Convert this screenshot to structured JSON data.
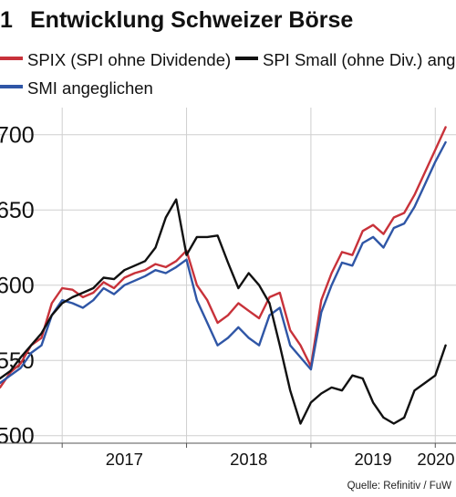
{
  "chart_number": "1",
  "title": "Entwicklung Schweizer Börse",
  "source": "Quelle: Refinitiv / FuW",
  "colors": {
    "spix": "#c8323a",
    "spi_small": "#111111",
    "smi": "#2f56a6",
    "grid": "#cfcfcf",
    "axis": "#555555"
  },
  "chart_data": {
    "type": "line",
    "title": "Entwicklung Schweizer Börse",
    "xlabel": "",
    "ylabel": "",
    "x_ticks": [
      "2017",
      "2018",
      "2019",
      "2020"
    ],
    "x_range": [
      "2016-07",
      "2020-03"
    ],
    "y_ticks": [
      500,
      550,
      600,
      650,
      700
    ],
    "y_tick_labels": [
      "500",
      "550",
      "600",
      "650",
      "700"
    ],
    "ylim": [
      495,
      718
    ],
    "grid": "vertical year lines and horizontal value lines",
    "legend_position": "top",
    "series": [
      {
        "name": "SPIX (SPI ohne Dividende)",
        "color": "#c8323a",
        "points": [
          [
            "2016-07",
            532
          ],
          [
            "2016-08",
            542
          ],
          [
            "2016-09",
            548
          ],
          [
            "2016-10",
            560
          ],
          [
            "2016-11",
            565
          ],
          [
            "2016-12",
            588
          ],
          [
            "2017-01",
            598
          ],
          [
            "2017-02",
            597
          ],
          [
            "2017-03",
            592
          ],
          [
            "2017-04",
            595
          ],
          [
            "2017-05",
            602
          ],
          [
            "2017-06",
            598
          ],
          [
            "2017-07",
            605
          ],
          [
            "2017-08",
            608
          ],
          [
            "2017-09",
            610
          ],
          [
            "2017-10",
            614
          ],
          [
            "2017-11",
            612
          ],
          [
            "2017-12",
            616
          ],
          [
            "2018-01",
            623
          ],
          [
            "2018-02",
            600
          ],
          [
            "2018-03",
            590
          ],
          [
            "2018-04",
            575
          ],
          [
            "2018-05",
            580
          ],
          [
            "2018-06",
            588
          ],
          [
            "2018-07",
            583
          ],
          [
            "2018-08",
            578
          ],
          [
            "2018-09",
            592
          ],
          [
            "2018-10",
            595
          ],
          [
            "2018-11",
            570
          ],
          [
            "2018-12",
            560
          ],
          [
            "2019-01",
            546
          ],
          [
            "2019-02",
            590
          ],
          [
            "2019-03",
            608
          ],
          [
            "2019-04",
            622
          ],
          [
            "2019-05",
            620
          ],
          [
            "2019-06",
            636
          ],
          [
            "2019-07",
            640
          ],
          [
            "2019-08",
            634
          ],
          [
            "2019-09",
            645
          ],
          [
            "2019-10",
            648
          ],
          [
            "2019-11",
            660
          ],
          [
            "2019-12",
            675
          ],
          [
            "2020-01",
            690
          ],
          [
            "2020-02",
            705
          ]
        ]
      },
      {
        "name": "SPI Small (ohne Div.) ang.",
        "color": "#111111",
        "points": [
          [
            "2016-07",
            538
          ],
          [
            "2016-08",
            543
          ],
          [
            "2016-09",
            552
          ],
          [
            "2016-10",
            560
          ],
          [
            "2016-11",
            568
          ],
          [
            "2016-12",
            580
          ],
          [
            "2017-01",
            588
          ],
          [
            "2017-02",
            592
          ],
          [
            "2017-03",
            595
          ],
          [
            "2017-04",
            598
          ],
          [
            "2017-05",
            605
          ],
          [
            "2017-06",
            604
          ],
          [
            "2017-07",
            610
          ],
          [
            "2017-08",
            613
          ],
          [
            "2017-09",
            616
          ],
          [
            "2017-10",
            625
          ],
          [
            "2017-11",
            645
          ],
          [
            "2017-12",
            657
          ],
          [
            "2018-01",
            620
          ],
          [
            "2018-02",
            632
          ],
          [
            "2018-03",
            632
          ],
          [
            "2018-04",
            633
          ],
          [
            "2018-05",
            615
          ],
          [
            "2018-06",
            598
          ],
          [
            "2018-07",
            608
          ],
          [
            "2018-08",
            600
          ],
          [
            "2018-09",
            588
          ],
          [
            "2018-10",
            560
          ],
          [
            "2018-11",
            530
          ],
          [
            "2018-12",
            508
          ],
          [
            "2019-01",
            522
          ],
          [
            "2019-02",
            528
          ],
          [
            "2019-03",
            532
          ],
          [
            "2019-04",
            530
          ],
          [
            "2019-05",
            540
          ],
          [
            "2019-06",
            538
          ],
          [
            "2019-07",
            522
          ],
          [
            "2019-08",
            512
          ],
          [
            "2019-09",
            508
          ],
          [
            "2019-10",
            512
          ],
          [
            "2019-11",
            530
          ],
          [
            "2019-12",
            535
          ],
          [
            "2020-01",
            540
          ],
          [
            "2020-02",
            560
          ]
        ]
      },
      {
        "name": "SMI angeglichen",
        "color": "#2f56a6",
        "points": [
          [
            "2016-07",
            535
          ],
          [
            "2016-08",
            540
          ],
          [
            "2016-09",
            545
          ],
          [
            "2016-10",
            555
          ],
          [
            "2016-11",
            560
          ],
          [
            "2016-12",
            580
          ],
          [
            "2017-01",
            590
          ],
          [
            "2017-02",
            588
          ],
          [
            "2017-03",
            585
          ],
          [
            "2017-04",
            590
          ],
          [
            "2017-05",
            598
          ],
          [
            "2017-06",
            594
          ],
          [
            "2017-07",
            600
          ],
          [
            "2017-08",
            603
          ],
          [
            "2017-09",
            606
          ],
          [
            "2017-10",
            610
          ],
          [
            "2017-11",
            608
          ],
          [
            "2017-12",
            612
          ],
          [
            "2018-01",
            617
          ],
          [
            "2018-02",
            590
          ],
          [
            "2018-03",
            575
          ],
          [
            "2018-04",
            560
          ],
          [
            "2018-05",
            565
          ],
          [
            "2018-06",
            572
          ],
          [
            "2018-07",
            565
          ],
          [
            "2018-08",
            560
          ],
          [
            "2018-09",
            580
          ],
          [
            "2018-10",
            585
          ],
          [
            "2018-11",
            560
          ],
          [
            "2018-12",
            552
          ],
          [
            "2019-01",
            544
          ],
          [
            "2019-02",
            582
          ],
          [
            "2019-03",
            600
          ],
          [
            "2019-04",
            615
          ],
          [
            "2019-05",
            613
          ],
          [
            "2019-06",
            628
          ],
          [
            "2019-07",
            632
          ],
          [
            "2019-08",
            625
          ],
          [
            "2019-09",
            638
          ],
          [
            "2019-10",
            641
          ],
          [
            "2019-11",
            652
          ],
          [
            "2019-12",
            667
          ],
          [
            "2020-01",
            682
          ],
          [
            "2020-02",
            695
          ]
        ]
      }
    ]
  }
}
